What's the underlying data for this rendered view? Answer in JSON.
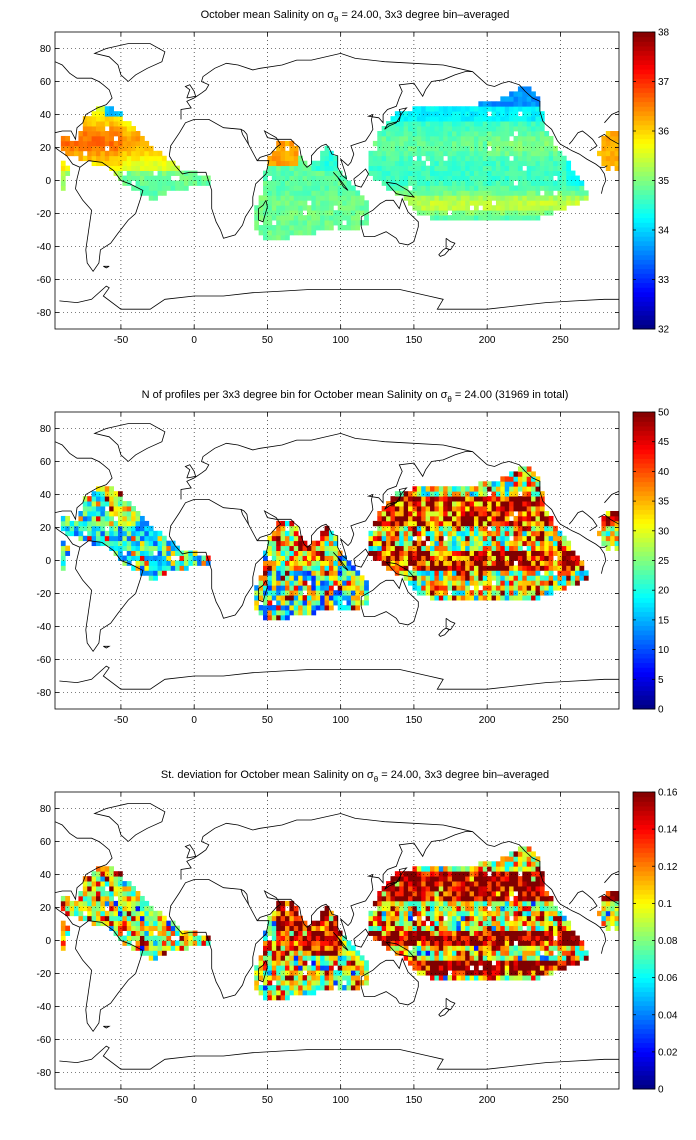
{
  "chart_data": [
    {
      "type": "heatmap",
      "title": {
        "pre": "October mean Salinity on ",
        "sym": "σ",
        "sub": "θ",
        "post": " = 24.00, 3x3 degree bin–averaged"
      },
      "xlim": [
        -95,
        290
      ],
      "ylim": [
        -90,
        90
      ],
      "xticks": [
        -50,
        0,
        50,
        100,
        150,
        200,
        250
      ],
      "yticks": [
        -80,
        -60,
        -40,
        -20,
        0,
        20,
        40,
        60,
        80
      ],
      "grid": "dotted",
      "colorbar": {
        "min": 32,
        "max": 38,
        "ticks": [
          32,
          33,
          34,
          35,
          36,
          37,
          38
        ]
      },
      "field": "salinity"
    },
    {
      "type": "heatmap",
      "title": {
        "pre": "N of profiles per 3x3 degree bin for October mean Salinity on ",
        "sym": "σ",
        "sub": "θ",
        "post": " = 24.00 (31969 in total)"
      },
      "xlim": [
        -95,
        290
      ],
      "ylim": [
        -90,
        90
      ],
      "xticks": [
        -50,
        0,
        50,
        100,
        150,
        200,
        250
      ],
      "yticks": [
        -80,
        -60,
        -40,
        -20,
        0,
        20,
        40,
        60,
        80
      ],
      "grid": "dotted",
      "colorbar": {
        "min": 0,
        "max": 50,
        "ticks": [
          0,
          5,
          10,
          15,
          20,
          25,
          30,
          35,
          40,
          45,
          50
        ]
      },
      "field": "count"
    },
    {
      "type": "heatmap",
      "title": {
        "pre": "St. deviation for October mean Salinity on ",
        "sym": "σ",
        "sub": "θ",
        "post": " = 24.00, 3x3 degree bin–averaged"
      },
      "xlim": [
        -95,
        290
      ],
      "ylim": [
        -90,
        90
      ],
      "xticks": [
        -50,
        0,
        50,
        100,
        150,
        200,
        250
      ],
      "yticks": [
        -80,
        -60,
        -40,
        -20,
        0,
        20,
        40,
        60,
        80
      ],
      "grid": "dotted",
      "colorbar": {
        "min": 0,
        "max": 0.16,
        "ticks": [
          0,
          0.02,
          0.04,
          0.06,
          0.08,
          0.1,
          0.12,
          0.14,
          0.16
        ]
      },
      "field": "std"
    }
  ],
  "colors": {
    "axis": "#000000",
    "coast": "#000000",
    "background": "#ffffff",
    "colormap": "jet"
  }
}
